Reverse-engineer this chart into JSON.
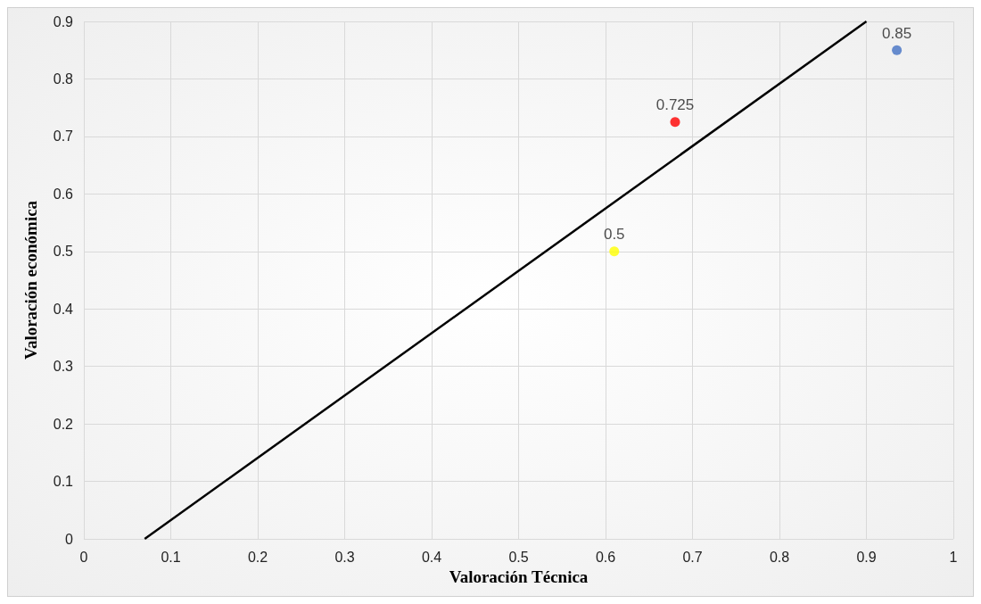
{
  "chart_data": {
    "type": "scatter",
    "xlabel": "Valoración Técnica",
    "ylabel": "Valoración económica",
    "x": [
      0.61,
      0.68,
      0.935
    ],
    "values": [
      0.5,
      0.725,
      0.85
    ],
    "colors": [
      "#ffff00",
      "#ff0000",
      "#4472c4"
    ],
    "value_labels": [
      "0.5",
      "0.725",
      "0.85"
    ],
    "series": [
      {
        "type": "line",
        "color": "#000000",
        "marker": "none",
        "x": [
          0.07,
          0.9
        ],
        "values": [
          0,
          0.9
        ]
      }
    ],
    "xlim": [
      0,
      1
    ],
    "xticks": [
      0,
      0.1,
      0.2,
      0.3,
      0.4,
      0.5,
      0.6,
      0.7,
      0.8,
      0.9,
      1
    ],
    "ylim": [
      0,
      0.9
    ],
    "yticks": [
      0,
      0.1,
      0.2,
      0.3,
      0.4,
      0.5,
      0.6,
      0.7,
      0.8,
      0.9
    ],
    "grid": true,
    "marker": "circle"
  }
}
